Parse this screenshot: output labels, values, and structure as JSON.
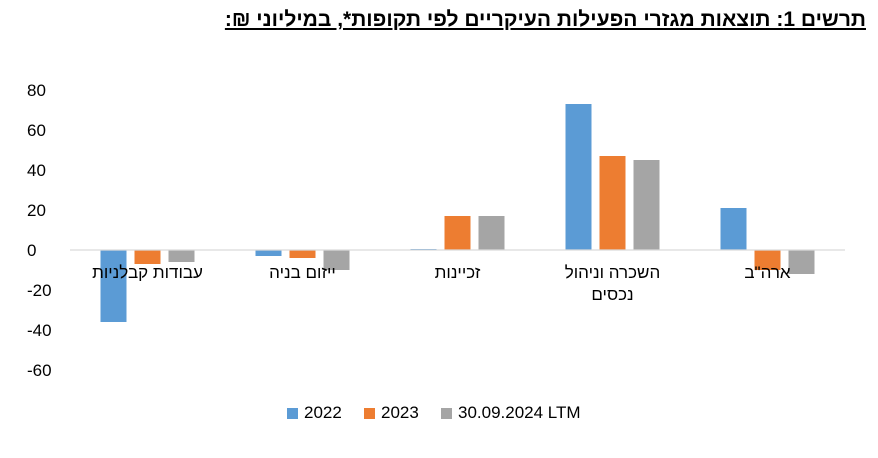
{
  "title": "תרשים 1: תוצאות מגזרי הפעילות העיקריים לפי תקופות*, במיליוני ₪:",
  "chart_data": {
    "type": "bar",
    "title": "תרשים 1: תוצאות מגזרי הפעילות העיקריים לפי תקופות*, במיליוני ₪:",
    "categories": [
      [
        "עבודות קבלניות"
      ],
      [
        "ייזום בניה"
      ],
      [
        "זכיינות"
      ],
      [
        "השכרה וניהול",
        "נכסים"
      ],
      [
        "ארה\"ב"
      ]
    ],
    "series": [
      {
        "name": "2022",
        "color": "#5B9BD5",
        "values": [
          -36,
          -3,
          0.5,
          73,
          21
        ]
      },
      {
        "name": "2023",
        "color": "#ED7D31",
        "values": [
          -7,
          -4,
          17,
          47,
          -10
        ]
      },
      {
        "name": "30.09.2024 LTM",
        "color": "#A5A5A5",
        "values": [
          -6,
          -10,
          17,
          45,
          -12
        ]
      }
    ],
    "yticks": [
      80,
      60,
      40,
      20,
      0,
      -20,
      -40,
      -60
    ],
    "ylim": [
      -60,
      80
    ],
    "xlabel": "",
    "ylabel": "",
    "grid": false,
    "legend_position": "bottom"
  }
}
